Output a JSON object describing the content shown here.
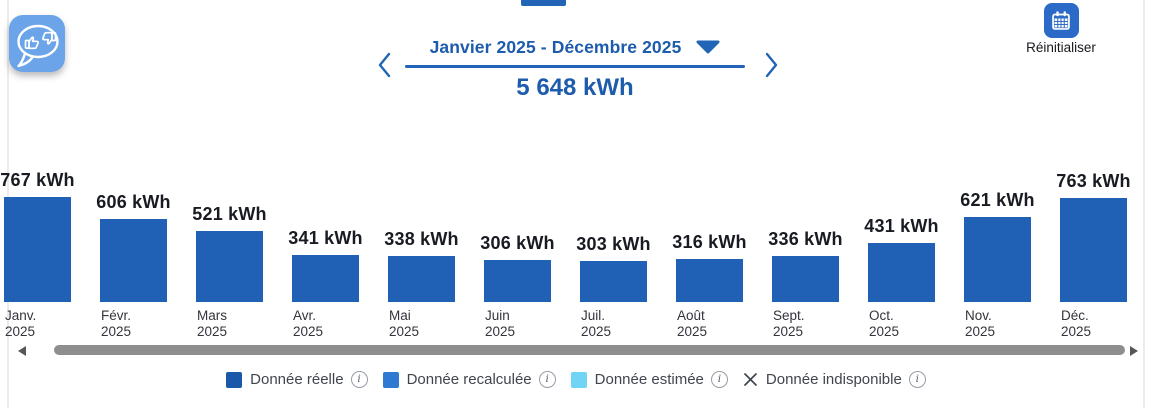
{
  "feedback_button": {
    "icon": "thumbs-up-down-feedback-icon",
    "bg_color": "#6ba4e8"
  },
  "period_nav": {
    "prev_icon": "chevron-left-icon",
    "next_icon": "chevron-right-icon",
    "label": "Janvier 2025 - Décembre 2025",
    "dropdown_icon": "caret-down-icon",
    "total": "5 648 kWh",
    "accent_color": "#1d5cac"
  },
  "reset": {
    "icon": "calendar-icon",
    "label": "Réinitialiser",
    "icon_bg": "#2b6ac6"
  },
  "chart_data": {
    "type": "bar",
    "unit": "kWh",
    "categories": [
      "Janv. 2025",
      "Févr. 2025",
      "Mars 2025",
      "Avr. 2025",
      "Mai 2025",
      "Juin 2025",
      "Juil. 2025",
      "Août 2025",
      "Sept. 2025",
      "Oct. 2025",
      "Nov. 2025",
      "Déc. 2025"
    ],
    "category_lines": [
      [
        "Janv.",
        "2025"
      ],
      [
        "Févr.",
        "2025"
      ],
      [
        "Mars",
        "2025"
      ],
      [
        "Avr.",
        "2025"
      ],
      [
        "Mai",
        "2025"
      ],
      [
        "Juin",
        "2025"
      ],
      [
        "Juil.",
        "2025"
      ],
      [
        "Août",
        "2025"
      ],
      [
        "Sept.",
        "2025"
      ],
      [
        "Oct.",
        "2025"
      ],
      [
        "Nov.",
        "2025"
      ],
      [
        "Déc.",
        "2025"
      ]
    ],
    "values": [
      767,
      606,
      521,
      341,
      338,
      306,
      303,
      316,
      336,
      431,
      621,
      763
    ],
    "value_labels": [
      "767 kWh",
      "606 kWh",
      "521 kWh",
      "341 kWh",
      "338 kWh",
      "306 kWh",
      "303 kWh",
      "316 kWh",
      "336 kWh",
      "431 kWh",
      "621 kWh",
      "763 kWh"
    ],
    "bar_color": "#2161b5",
    "total_label": "5 648 kWh",
    "ylim": [
      0,
      800
    ],
    "grid": false,
    "legend_position": "bottom"
  },
  "legend": {
    "items": [
      {
        "swatch": "square",
        "color": "#1d57a9",
        "label": "Donnée réelle",
        "info_icon": "info-icon"
      },
      {
        "swatch": "square",
        "color": "#2e7ad2",
        "label": "Donnée recalculée",
        "info_icon": "info-icon"
      },
      {
        "swatch": "square",
        "color": "#6fd4f5",
        "label": "Donnée estimée",
        "info_icon": "info-icon"
      },
      {
        "swatch": "x",
        "color": "#3f434c",
        "label": "Donnée indisponible",
        "info_icon": "info-icon"
      }
    ]
  },
  "scrollbar": {
    "orientation": "horizontal",
    "left_icon": "scroll-left-arrow-icon",
    "right_icon": "scroll-right-arrow-icon"
  }
}
